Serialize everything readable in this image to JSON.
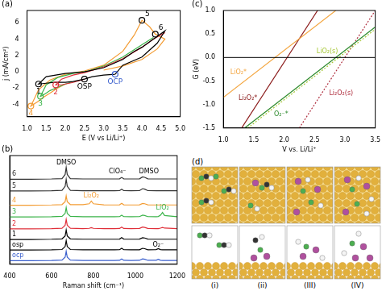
{
  "chart_data": [
    {
      "type": "line",
      "title": "(a)",
      "xlabel": "E (V vs Li/Li⁺)",
      "ylabel": "j (mA/cm²)",
      "xlim": [
        1.0,
        5.0
      ],
      "xticks": [
        {
          "value": 1,
          "label": "1.0"
        },
        1.5,
        {
          "value": 2,
          "label": "2.0"
        },
        2.5,
        {
          "value": 3,
          "label": "3.0"
        },
        3.5,
        {
          "value": 4,
          "label": "4.0"
        },
        4.5,
        {
          "value": 5,
          "label": "5.0"
        }
      ],
      "ylim": [
        -5.5,
        7.5
      ],
      "yticks": [
        -4,
        -2,
        0,
        2,
        4,
        6
      ],
      "grid": false,
      "series": [
        {
          "color": "#000000",
          "x": [
            3.3,
            3.0,
            2.7,
            2.5,
            2.2,
            2.0,
            1.7,
            1.5,
            1.3,
            1.5,
            2.0,
            2.5,
            3.0,
            3.5,
            3.8,
            4.0,
            4.3,
            4.6,
            4.4,
            4.0,
            3.5,
            3.3
          ],
          "values": [
            -0.3,
            -0.4,
            -0.6,
            -0.9,
            -1.2,
            -1.3,
            -1.3,
            -1.4,
            -1.5,
            -0.6,
            -0.2,
            0.0,
            0.5,
            1.5,
            2.5,
            3.0,
            4.0,
            5.0,
            3.5,
            1.8,
            0.8,
            -0.3
          ]
        },
        {
          "color": "#e0303a",
          "x": [
            2.5,
            2.2,
            2.0,
            1.9,
            1.8,
            1.75,
            1.9,
            2.2,
            2.5,
            3.0,
            3.5,
            4.0,
            4.3,
            4.6
          ],
          "values": [
            -0.9,
            -1.3,
            -1.5,
            -1.6,
            -1.6,
            -1.6,
            -0.9,
            -0.4,
            -0.1,
            0.6,
            1.6,
            3.0,
            4.0,
            4.8
          ]
        },
        {
          "color": "#3cb44b",
          "x": [
            2.2,
            2.0,
            1.8,
            1.6,
            1.5,
            1.4,
            1.35,
            1.5,
            1.8,
            2.2,
            2.6,
            3.0,
            3.5,
            4.0,
            4.3
          ],
          "values": [
            -1.2,
            -1.5,
            -1.9,
            -2.3,
            -2.6,
            -2.9,
            -3.0,
            -1.6,
            -0.7,
            -0.2,
            0.1,
            0.7,
            1.8,
            3.3,
            4.2
          ]
        },
        {
          "color": "#f39c33",
          "x": [
            2.0,
            1.8,
            1.6,
            1.4,
            1.3,
            1.2,
            1.1,
            1.3,
            1.6,
            2.0,
            2.5,
            3.0,
            3.5,
            3.8,
            4.0,
            4.2,
            4.35,
            4.6,
            4.4,
            4.0,
            3.5,
            3.0
          ],
          "values": [
            -1.5,
            -2.0,
            -2.6,
            -3.2,
            -3.6,
            -3.9,
            -4.2,
            -2.2,
            -1.0,
            -0.3,
            0.1,
            0.8,
            2.5,
            4.5,
            6.3,
            5.5,
            4.6,
            4.0,
            2.8,
            1.5,
            0.7,
            0.2
          ]
        }
      ],
      "annotations": [
        {
          "text": "1",
          "x": 1.3,
          "y": -1.5,
          "color": "#000000",
          "marker": "circle"
        },
        {
          "text": "2",
          "x": 1.75,
          "y": -1.6,
          "color": "#e0303a",
          "marker": "circle"
        },
        {
          "text": "3",
          "x": 1.35,
          "y": -3.0,
          "color": "#3cb44b",
          "marker": "circle"
        },
        {
          "text": "4",
          "x": 1.1,
          "y": -4.2,
          "color": "#f39c33",
          "marker": "circle"
        },
        {
          "text": "OSP",
          "x": 2.5,
          "y": -0.9,
          "color": "#000000",
          "marker": "circle"
        },
        {
          "text": "OCP",
          "x": 3.3,
          "y": -0.3,
          "color": "#3a5fcd",
          "marker": "circle"
        },
        {
          "text": "5",
          "x": 4.0,
          "y": 6.3,
          "color": "#000000",
          "marker": "circle"
        },
        {
          "text": "6",
          "x": 4.35,
          "y": 4.6,
          "color": "#000000",
          "marker": "circle"
        }
      ]
    },
    {
      "type": "line",
      "title": "(b)",
      "xlabel": "Raman shift (cm⁻¹)",
      "xlim": [
        400,
        1200
      ],
      "xticks": [
        400,
        600,
        800,
        1000,
        1200
      ],
      "ylim": [
        0,
        9.2
      ],
      "grid": false,
      "tick_labels": "x",
      "x": [
        400,
        500,
        600,
        650,
        665,
        670,
        675,
        690,
        750,
        780,
        790,
        800,
        850,
        900,
        925,
        935,
        945,
        980,
        1020,
        1035,
        1045,
        1060,
        1100,
        1110,
        1120,
        1130,
        1140,
        1200
      ],
      "series": [
        {
          "name": "ocp",
          "color": "#3a5fcd",
          "values": [
            0.3,
            0.3,
            0.32,
            0.35,
            0.6,
            1.1,
            0.6,
            0.35,
            0.32,
            0.32,
            0.32,
            0.32,
            0.32,
            0.32,
            0.33,
            0.45,
            0.33,
            0.32,
            0.33,
            0.45,
            0.42,
            0.33,
            0.34,
            0.42,
            0.34,
            0.32,
            0.32,
            0.32
          ]
        },
        {
          "name": "osp",
          "color": "#000000",
          "values": [
            1.2,
            1.2,
            1.22,
            1.25,
            1.5,
            2.0,
            1.5,
            1.25,
            1.22,
            1.22,
            1.22,
            1.22,
            1.22,
            1.22,
            1.23,
            1.35,
            1.23,
            1.22,
            1.23,
            1.35,
            1.32,
            1.23,
            1.24,
            1.32,
            1.24,
            1.22,
            1.22,
            1.22
          ]
        },
        {
          "name": "1",
          "color": "#000000",
          "values": [
            2.1,
            2.1,
            2.12,
            2.15,
            2.4,
            2.9,
            2.4,
            2.15,
            2.12,
            2.12,
            2.12,
            2.12,
            2.12,
            2.12,
            2.13,
            2.25,
            2.13,
            2.12,
            2.13,
            2.25,
            2.22,
            2.13,
            2.12,
            2.12,
            2.12,
            2.12,
            2.12,
            2.12
          ]
        },
        {
          "name": "2",
          "color": "#e0303a",
          "values": [
            3.0,
            3.0,
            3.02,
            3.05,
            3.3,
            3.8,
            3.3,
            3.05,
            3.02,
            3.04,
            3.1,
            3.04,
            3.02,
            3.02,
            3.03,
            3.15,
            3.03,
            3.02,
            3.03,
            3.15,
            3.12,
            3.03,
            3.02,
            3.02,
            3.06,
            3.12,
            3.06,
            3.02
          ]
        },
        {
          "name": "3",
          "color": "#3cb44b",
          "values": [
            4.0,
            4.0,
            4.02,
            4.05,
            4.3,
            4.8,
            4.3,
            4.05,
            4.02,
            4.02,
            4.02,
            4.02,
            4.02,
            4.02,
            4.03,
            4.15,
            4.03,
            4.02,
            4.03,
            4.15,
            4.12,
            4.03,
            4.02,
            4.04,
            4.15,
            4.38,
            4.12,
            4.02
          ]
        },
        {
          "name": "4",
          "color": "#f39c33",
          "values": [
            5.0,
            5.0,
            5.02,
            5.05,
            5.3,
            5.8,
            5.3,
            5.05,
            5.04,
            5.12,
            5.35,
            5.12,
            5.03,
            5.02,
            5.03,
            5.15,
            5.03,
            5.02,
            5.03,
            5.15,
            5.12,
            5.03,
            5.02,
            5.02,
            5.02,
            5.02,
            5.02,
            5.02
          ]
        },
        {
          "name": "5",
          "color": "#333333",
          "values": [
            6.2,
            6.2,
            6.22,
            6.25,
            6.6,
            7.2,
            6.6,
            6.25,
            6.22,
            6.22,
            6.22,
            6.22,
            6.22,
            6.22,
            6.23,
            6.35,
            6.23,
            6.22,
            6.23,
            6.4,
            6.36,
            6.23,
            6.22,
            6.22,
            6.22,
            6.22,
            6.22,
            6.22
          ]
        },
        {
          "name": "6",
          "color": "#333333",
          "values": [
            7.2,
            7.2,
            7.22,
            7.25,
            7.6,
            8.2,
            7.6,
            7.25,
            7.22,
            7.22,
            7.22,
            7.22,
            7.22,
            7.22,
            7.23,
            7.35,
            7.23,
            7.22,
            7.23,
            7.4,
            7.36,
            7.23,
            7.22,
            7.22,
            7.22,
            7.22,
            7.22,
            7.22
          ]
        }
      ],
      "annotations": [
        {
          "text": "DMSO",
          "x": 670,
          "y": 8.6,
          "color": "#000000"
        },
        {
          "text": "DMSO",
          "x": 1065,
          "y": 7.85,
          "color": "#000000"
        },
        {
          "text": "ClO₄⁻",
          "x": 915,
          "y": 7.85,
          "color": "#000000"
        },
        {
          "text": "Li₂O₂",
          "x": 790,
          "y": 5.8,
          "color": "#f39c33"
        },
        {
          "text": "LiO₂",
          "x": 1130,
          "y": 4.75,
          "color": "#3cb44b"
        },
        {
          "text": "O₂⁻",
          "x": 1110,
          "y": 1.6,
          "color": "#000000"
        }
      ]
    },
    {
      "type": "line",
      "title": "(c)",
      "xlabel": "V vs. Li/Li⁺",
      "ylabel": "G (eV)",
      "xlim": [
        1.0,
        3.5
      ],
      "xticks": [
        {
          "value": 1,
          "label": "1.0"
        },
        1.5,
        {
          "value": 2,
          "label": "2.0"
        },
        2.5,
        {
          "value": 3,
          "label": "3.0"
        },
        3.5
      ],
      "ylim": [
        -1.5,
        1.0
      ],
      "yticks": [
        -1.5,
        {
          "value": -1,
          "label": "-1.0"
        },
        -0.5,
        {
          "value": 0,
          "label": "0.0"
        },
        0.5,
        {
          "value": 1,
          "label": "1.0"
        }
      ],
      "hline": 0,
      "grid": false,
      "series": [
        {
          "name": "LiO₂*",
          "color": "#f4a742",
          "line_style": "solid",
          "x": [
            1.0,
            2.85
          ],
          "values": [
            -0.85,
            1.0
          ]
        },
        {
          "name": "Li₂O₂*",
          "color": "#8b1a1a",
          "line_style": "solid",
          "x": [
            1.3,
            2.55
          ],
          "values": [
            -1.5,
            1.0
          ]
        },
        {
          "name": "O₂⁻*",
          "color": "#2e8b2e",
          "line_style": "solid",
          "x": [
            1.35,
            3.5
          ],
          "values": [
            -1.5,
            0.65
          ]
        },
        {
          "name": "LiO₂(s)",
          "color": "#a8c83a",
          "line_style": "dotted",
          "x": [
            1.4,
            3.5
          ],
          "values": [
            -1.5,
            0.6
          ]
        },
        {
          "name": "Li₂O₂(s)",
          "color": "#b03040",
          "line_style": "dotted",
          "x": [
            2.25,
            3.5
          ],
          "values": [
            -1.5,
            1.0
          ]
        }
      ]
    }
  ],
  "diagram": {
    "title": "(d)",
    "labels": [
      "(i)",
      "(ii)",
      "(III)",
      "(IV)"
    ]
  }
}
